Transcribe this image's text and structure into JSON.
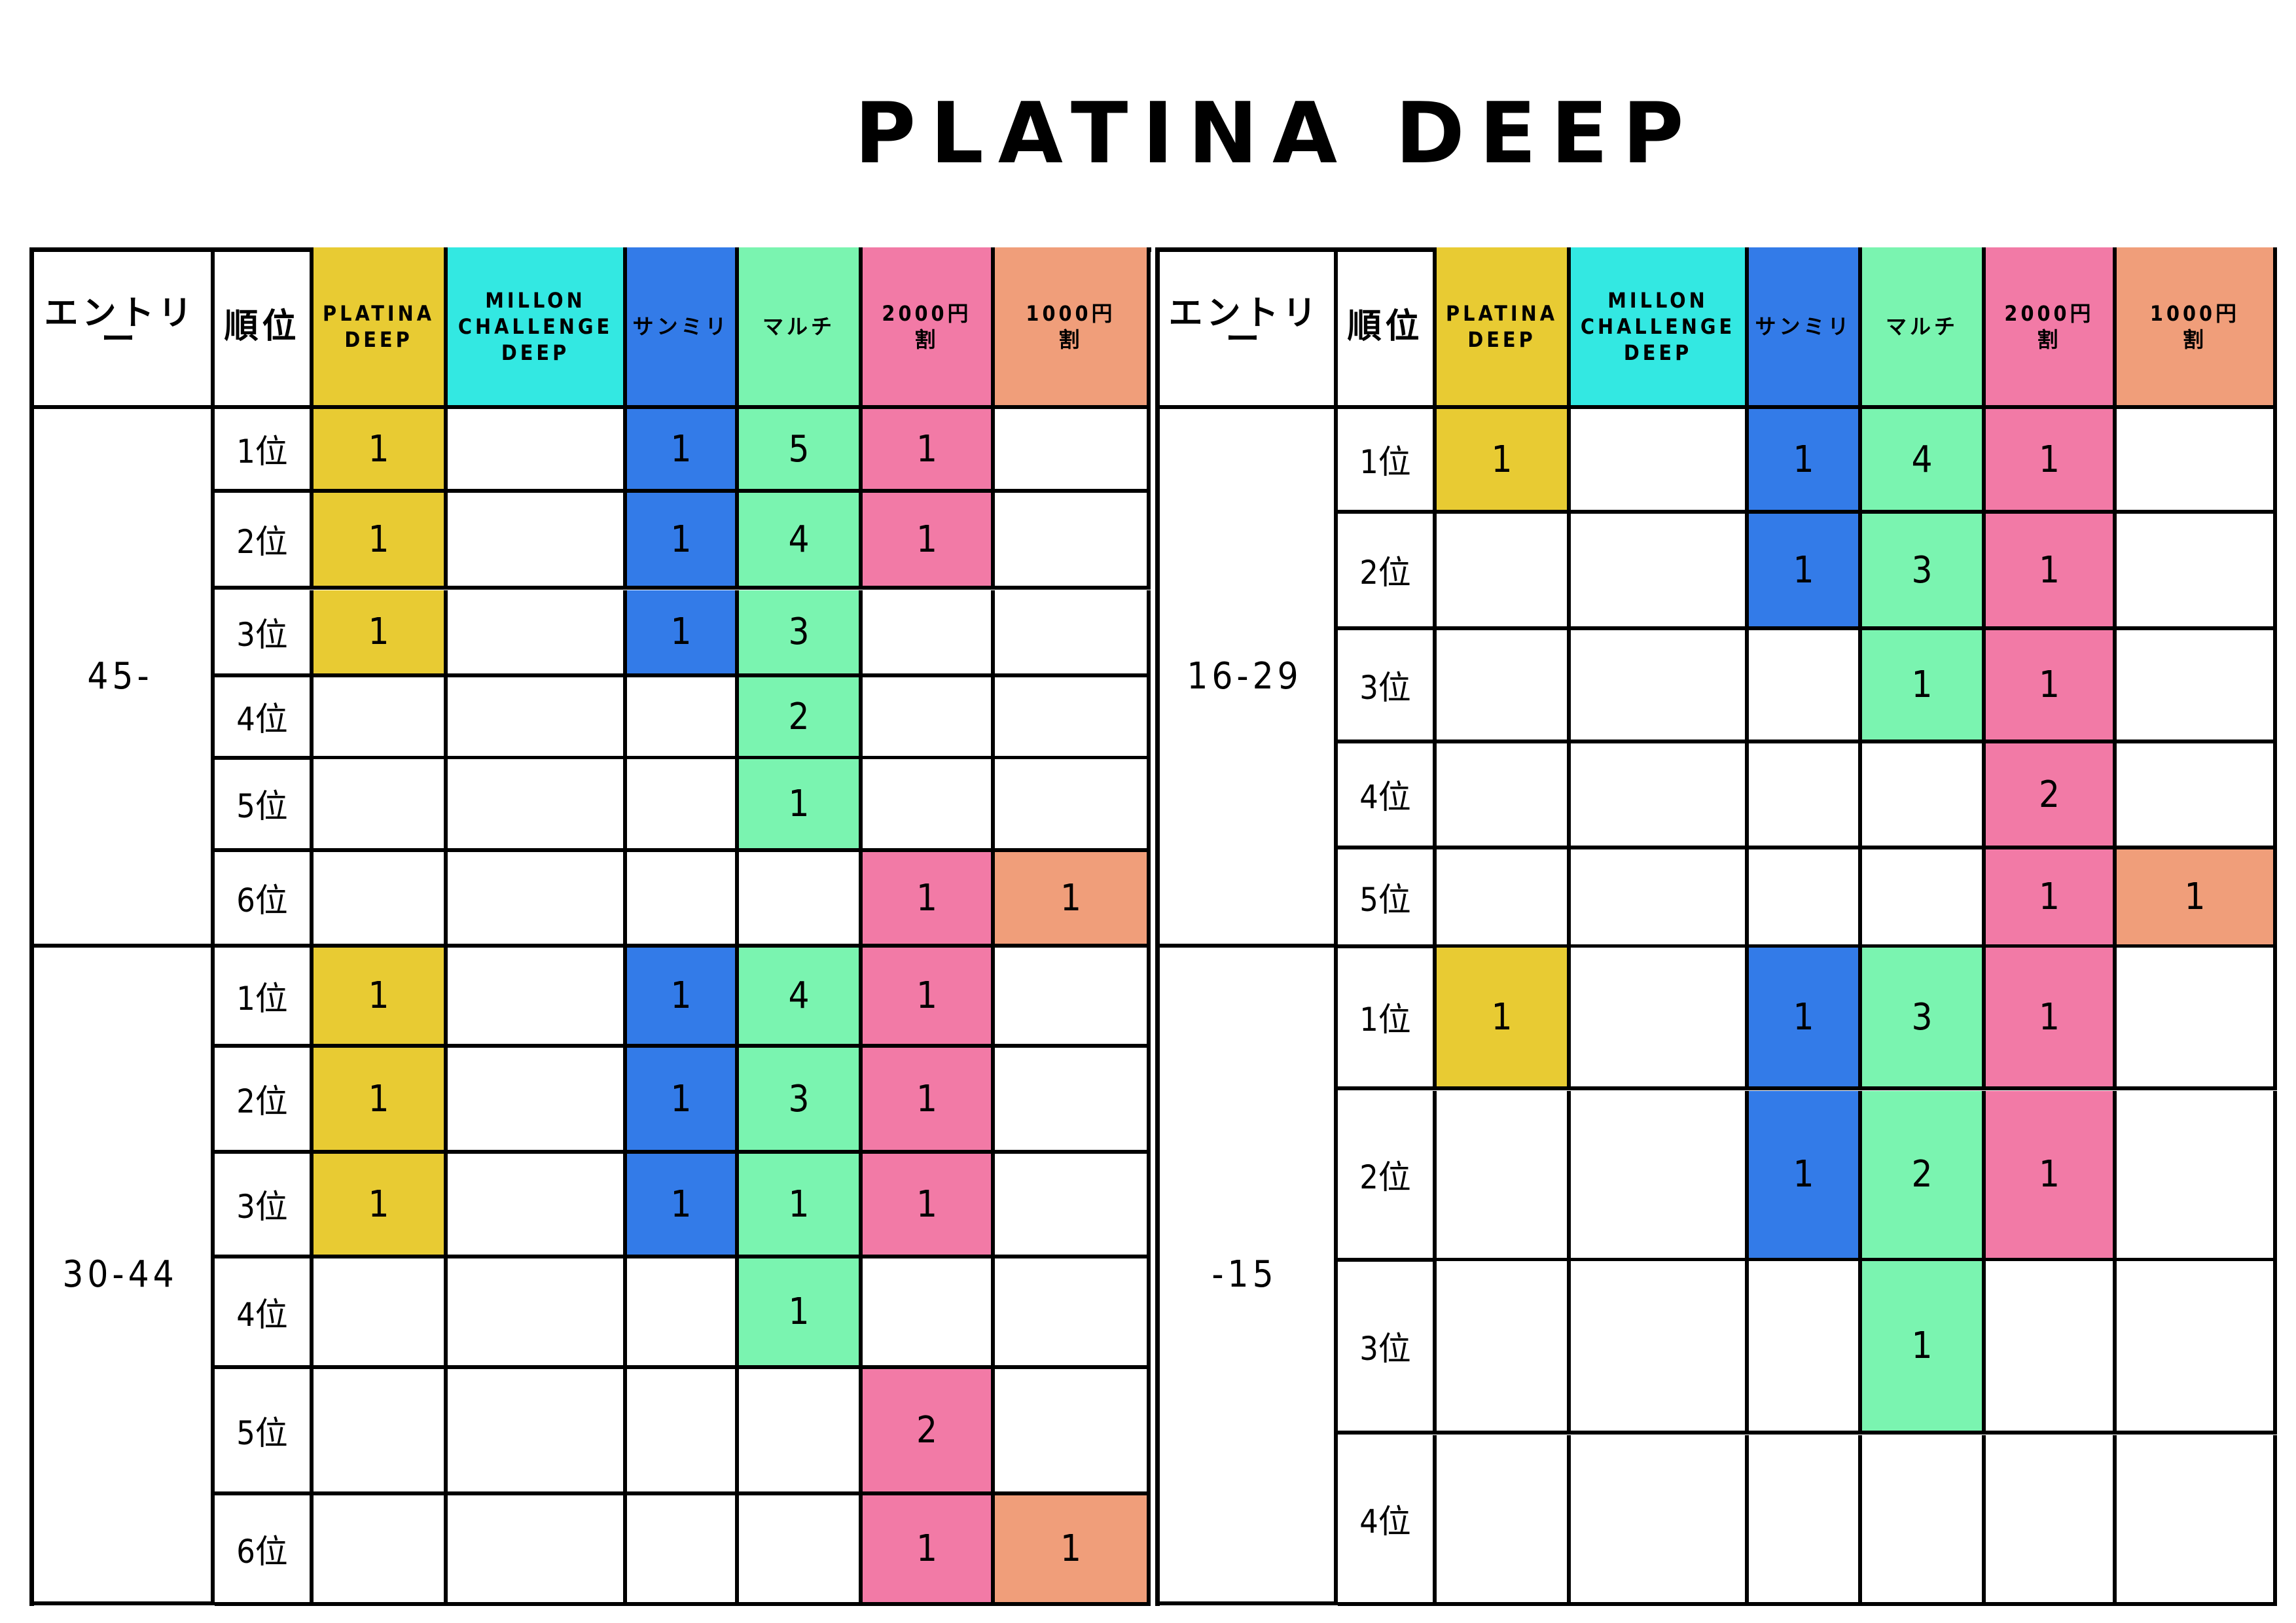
{
  "title": "PLATINA DEEP",
  "colors": {
    "platina_deep": "#E8CB33",
    "millon_challenge_deep": "#33E8E2",
    "sanmiri": "#337BE8",
    "maruchi": "#7AF4B0",
    "discount_2000": "#F27AA6",
    "discount_1000": "#F09E7A"
  },
  "headers": {
    "entry": "エントリー",
    "rank": "順位",
    "columns": [
      "PLATINA\nDEEP",
      "MILLON\nCHALLENGE\nDEEP",
      "サンミリ",
      "マルチ",
      "2000円\n割",
      "1000円\n割"
    ]
  },
  "tables": [
    {
      "groups": [
        {
          "label": "45-",
          "rows": [
            {
              "rank": "1位",
              "values": [
                "1",
                "",
                "1",
                "5",
                "1",
                ""
              ]
            },
            {
              "rank": "2位",
              "values": [
                "1",
                "",
                "1",
                "4",
                "1",
                ""
              ]
            },
            {
              "rank": "3位",
              "values": [
                "1",
                "",
                "1",
                "3",
                "",
                ""
              ]
            },
            {
              "rank": "4位",
              "values": [
                "",
                "",
                "",
                "2",
                "",
                ""
              ]
            },
            {
              "rank": "5位",
              "values": [
                "",
                "",
                "",
                "1",
                "",
                ""
              ]
            },
            {
              "rank": "6位",
              "values": [
                "",
                "",
                "",
                "",
                "1",
                "1"
              ]
            }
          ]
        },
        {
          "label": "30-44",
          "rows": [
            {
              "rank": "1位",
              "values": [
                "1",
                "",
                "1",
                "4",
                "1",
                ""
              ]
            },
            {
              "rank": "2位",
              "values": [
                "1",
                "",
                "1",
                "3",
                "1",
                ""
              ]
            },
            {
              "rank": "3位",
              "values": [
                "1",
                "",
                "1",
                "1",
                "1",
                ""
              ]
            },
            {
              "rank": "4位",
              "values": [
                "",
                "",
                "",
                "1",
                "",
                ""
              ]
            },
            {
              "rank": "5位",
              "values": [
                "",
                "",
                "",
                "",
                "2",
                ""
              ]
            },
            {
              "rank": "6位",
              "values": [
                "",
                "",
                "",
                "",
                "1",
                "1"
              ]
            }
          ]
        }
      ]
    },
    {
      "groups": [
        {
          "label": "16-29",
          "rows": [
            {
              "rank": "1位",
              "values": [
                "1",
                "",
                "1",
                "4",
                "1",
                ""
              ]
            },
            {
              "rank": "2位",
              "values": [
                "",
                "",
                "1",
                "3",
                "1",
                ""
              ]
            },
            {
              "rank": "3位",
              "values": [
                "",
                "",
                "",
                "1",
                "1",
                ""
              ]
            },
            {
              "rank": "4位",
              "values": [
                "",
                "",
                "",
                "",
                "2",
                ""
              ]
            },
            {
              "rank": "5位",
              "values": [
                "",
                "",
                "",
                "",
                "1",
                "1"
              ]
            }
          ]
        },
        {
          "label": "-15",
          "rows": [
            {
              "rank": "1位",
              "values": [
                "1",
                "",
                "1",
                "3",
                "1",
                ""
              ]
            },
            {
              "rank": "2位",
              "values": [
                "",
                "",
                "1",
                "2",
                "1",
                ""
              ]
            },
            {
              "rank": "3位",
              "values": [
                "",
                "",
                "",
                "1",
                "",
                ""
              ]
            },
            {
              "rank": "4位",
              "values": [
                "",
                "",
                "",
                "",
                "",
                ""
              ]
            }
          ]
        }
      ]
    }
  ]
}
